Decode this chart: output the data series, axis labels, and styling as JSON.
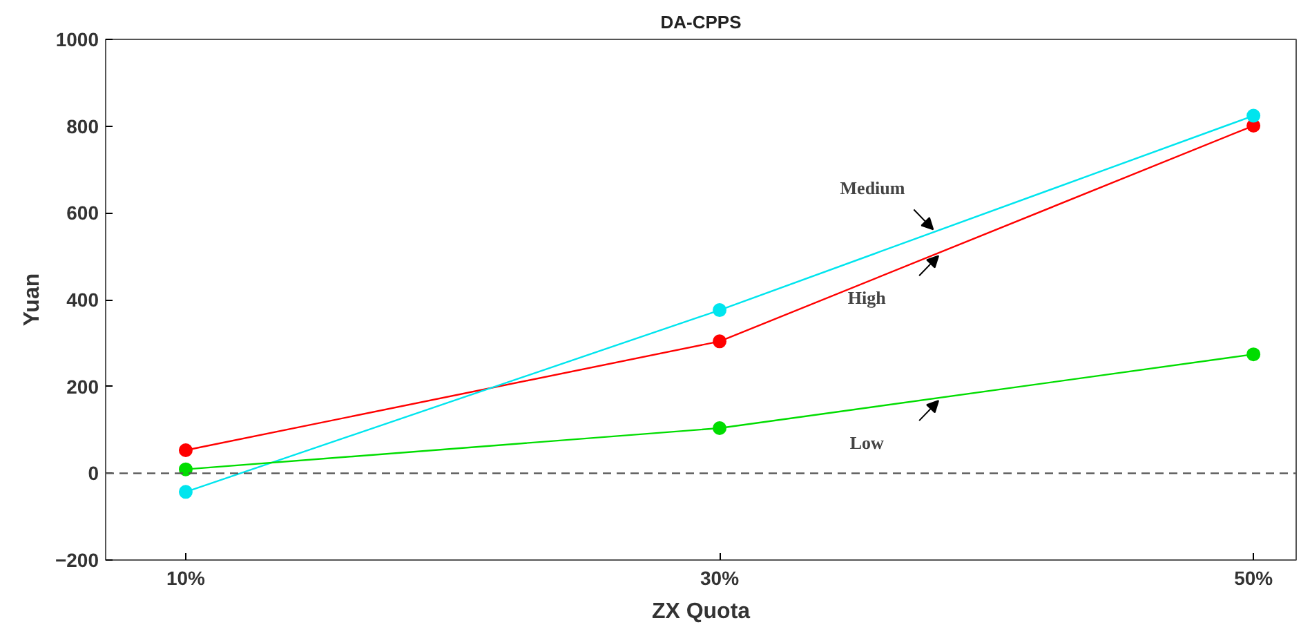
{
  "chart_data": {
    "type": "line",
    "title": "DA-CPPS",
    "xlabel": "ZX Quota",
    "ylabel": "Yuan",
    "categories": [
      "10%",
      "30%",
      "50%"
    ],
    "series": [
      {
        "name": "High",
        "color": "#ff0000",
        "values": [
          53,
          304,
          801
        ]
      },
      {
        "name": "Medium",
        "color": "#00e5ee",
        "values": [
          -43,
          376,
          824
        ]
      },
      {
        "name": "Low",
        "color": "#00dd00",
        "values": [
          9,
          104,
          274
        ]
      }
    ],
    "ylim": [
      -200,
      1000
    ],
    "yticks": [
      -200,
      0,
      200,
      400,
      600,
      800,
      1000
    ],
    "ref_lines": [
      {
        "axis": "y",
        "value": 0,
        "color": "#555555",
        "line_style": "dashed"
      }
    ],
    "marker": "circle",
    "grid": false
  }
}
